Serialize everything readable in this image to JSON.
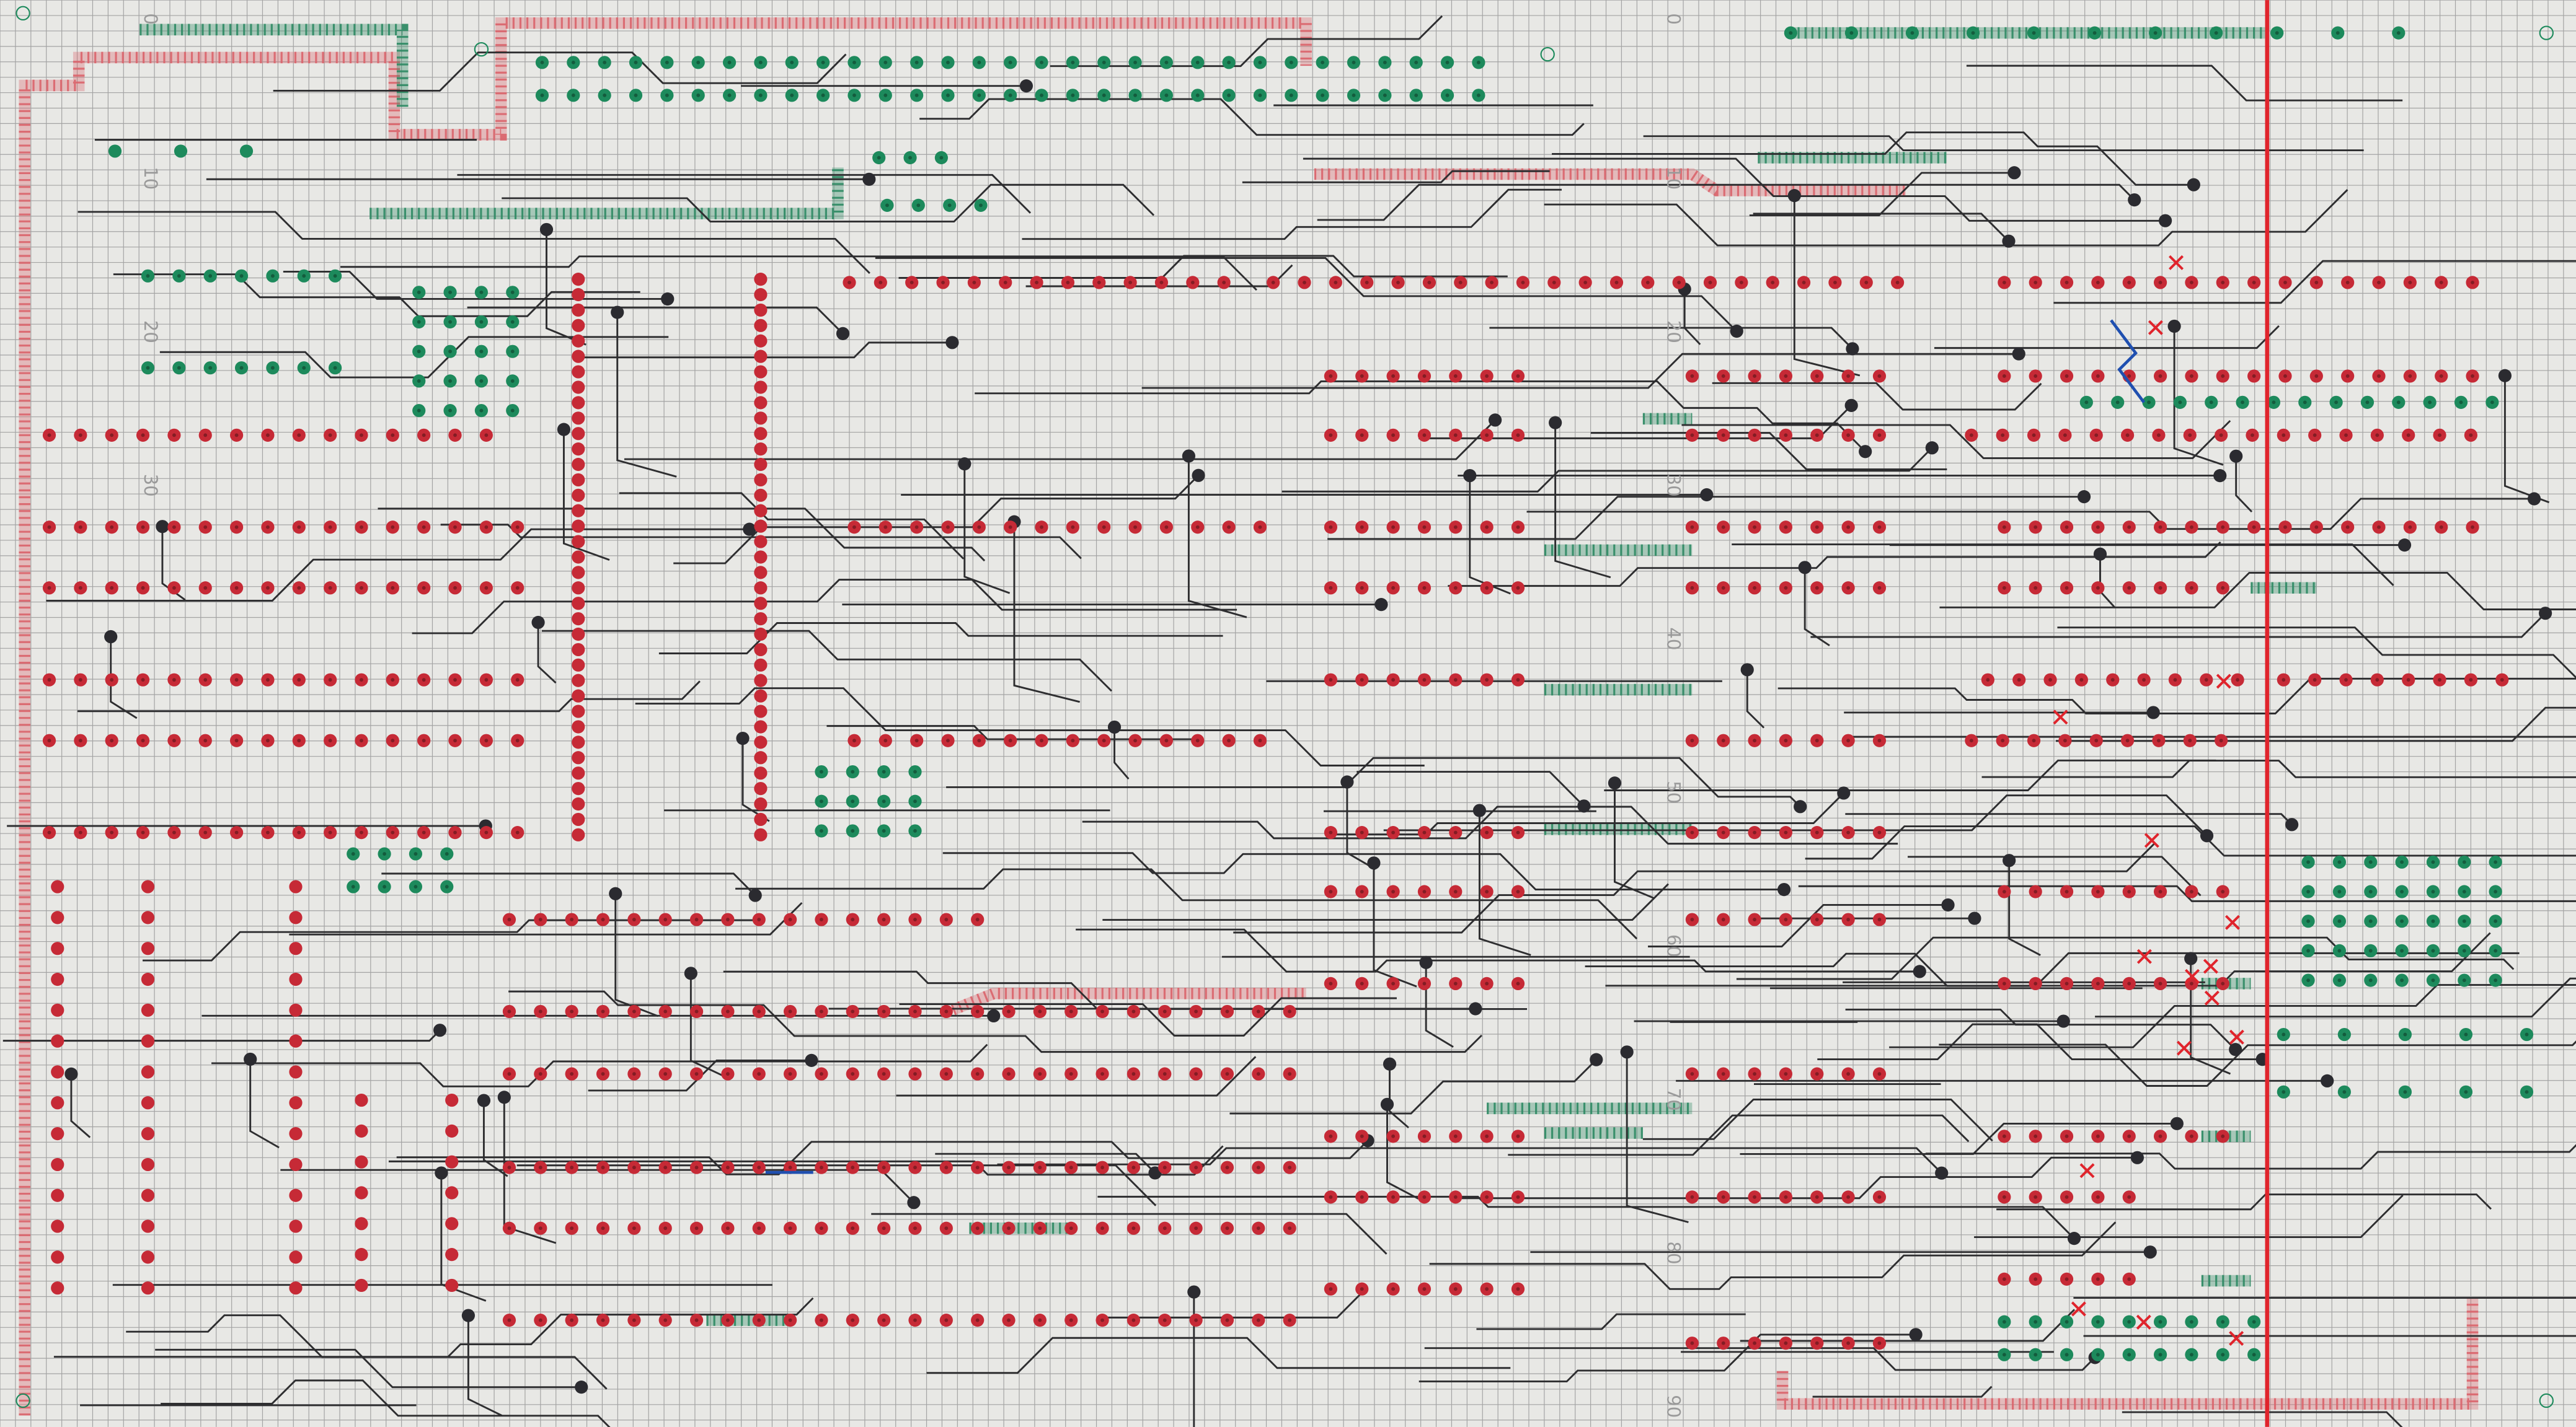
{
  "drawing": {
    "scale_labels_center": [
      "0",
      "10",
      "20",
      "30",
      "40",
      "50",
      "60",
      "70",
      "80",
      "90"
    ],
    "scale_labels_left": [
      "0",
      "10",
      "20",
      "30"
    ],
    "colors": {
      "paper": "#e8e8e5",
      "grid": "#a3a3a3",
      "red_pad": "#c62a36",
      "green_pad": "#1d8a5c",
      "black_pad": "#2b2b30",
      "trace": "#2e2e30",
      "red_bus": "#d9646c",
      "green_bus": "#2f8a64",
      "cut_line": "#e0242c",
      "jumper": "#1f4fb0"
    },
    "icons": [
      "mounting-hole-icon",
      "cut-mark-icon"
    ]
  }
}
